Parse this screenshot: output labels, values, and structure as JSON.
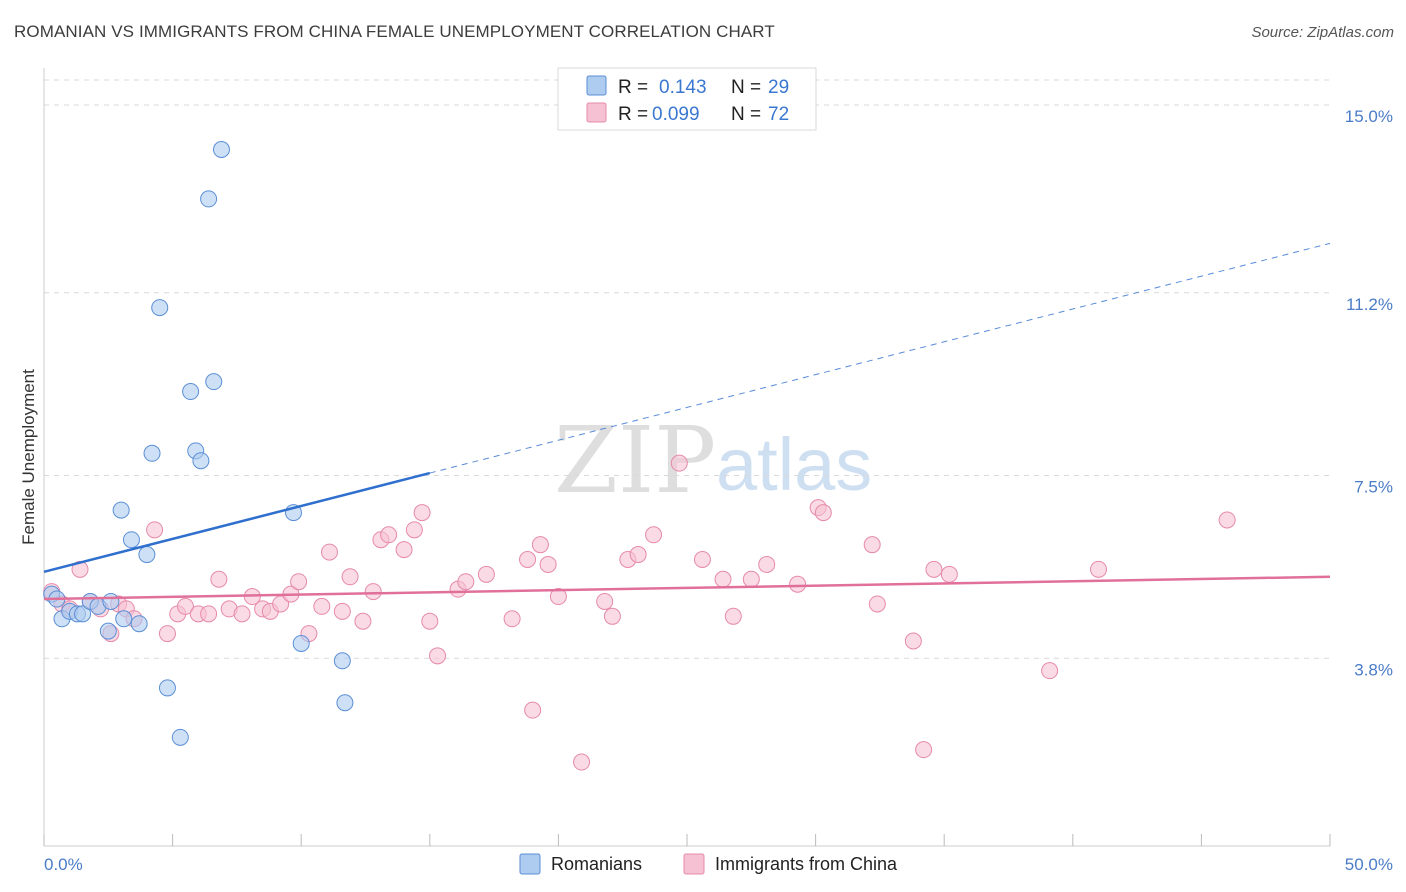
{
  "header": {
    "title": "ROMANIAN VS IMMIGRANTS FROM CHINA FEMALE UNEMPLOYMENT CORRELATION CHART",
    "source": "Source: ZipAtlas.com"
  },
  "watermark": {
    "zip": "ZIP",
    "atlas": "atlas"
  },
  "colors": {
    "romanians_fill": "#aecbf0",
    "romanians_stroke": "#5b8fd6",
    "romanians_line": "#2f6fce",
    "china_fill": "#f6c1d2",
    "china_stroke": "#e68aab",
    "china_line": "#e0709a",
    "tick_text": "#4a7cc7",
    "grid": "#d9d9d9"
  },
  "legend": {
    "rows": [
      {
        "r_label": "R =",
        "r_value": "0.143",
        "n_label": "N =",
        "n_value": "29"
      },
      {
        "r_label": "R =",
        "r_value": "0.099",
        "n_label": "N =",
        "n_value": "72"
      }
    ]
  },
  "bottom_legend": [
    {
      "label": "Romanians"
    },
    {
      "label": "Immigrants from China"
    }
  ],
  "chart_data": {
    "type": "scatter",
    "title": "ROMANIAN VS IMMIGRANTS FROM CHINA FEMALE UNEMPLOYMENT CORRELATION CHART",
    "xlabel": "",
    "ylabel": "Female Unemployment",
    "xlim": [
      0,
      50
    ],
    "ylim": [
      0,
      15.75
    ],
    "x_tick_labels": [
      "0.0%",
      "50.0%"
    ],
    "y_ticks": [
      3.8,
      7.5,
      11.2,
      15.0
    ],
    "y_tick_labels": [
      "3.8%",
      "7.5%",
      "11.2%",
      "15.0%"
    ],
    "grid": true,
    "series": [
      {
        "name": "Romanians",
        "r": 0.143,
        "n": 29,
        "trend": {
          "x0": 0,
          "y0": 5.55,
          "x1": 15,
          "y1": 7.55,
          "dashed_to_x": 50,
          "dashed_to_y": 12.2
        },
        "points": [
          [
            0.3,
            5.1
          ],
          [
            0.5,
            5.0
          ],
          [
            0.7,
            4.6
          ],
          [
            1.0,
            4.75
          ],
          [
            1.3,
            4.7
          ],
          [
            1.5,
            4.7
          ],
          [
            1.8,
            4.95
          ],
          [
            2.1,
            4.85
          ],
          [
            2.5,
            4.35
          ],
          [
            2.6,
            4.95
          ],
          [
            3.0,
            6.8
          ],
          [
            3.1,
            4.6
          ],
          [
            3.4,
            6.2
          ],
          [
            3.7,
            4.5
          ],
          [
            4.0,
            5.9
          ],
          [
            4.2,
            7.95
          ],
          [
            4.5,
            10.9
          ],
          [
            4.8,
            3.2
          ],
          [
            5.3,
            2.2
          ],
          [
            5.7,
            9.2
          ],
          [
            5.9,
            8.0
          ],
          [
            6.1,
            7.8
          ],
          [
            6.4,
            13.1
          ],
          [
            6.6,
            9.4
          ],
          [
            6.9,
            14.1
          ],
          [
            9.7,
            6.75
          ],
          [
            10.0,
            4.1
          ],
          [
            11.6,
            3.75
          ],
          [
            11.7,
            2.9
          ]
        ]
      },
      {
        "name": "Immigrants from China",
        "r": 0.099,
        "n": 72,
        "trend": {
          "x0": 0,
          "y0": 5.0,
          "x1": 50,
          "y1": 5.45
        },
        "points": [
          [
            0.3,
            5.15
          ],
          [
            0.7,
            4.9
          ],
          [
            1.0,
            4.8
          ],
          [
            1.4,
            5.6
          ],
          [
            1.8,
            4.95
          ],
          [
            2.2,
            4.8
          ],
          [
            2.6,
            4.3
          ],
          [
            2.9,
            4.9
          ],
          [
            3.2,
            4.8
          ],
          [
            3.5,
            4.6
          ],
          [
            4.3,
            6.4
          ],
          [
            4.8,
            4.3
          ],
          [
            5.2,
            4.7
          ],
          [
            5.5,
            4.85
          ],
          [
            6.0,
            4.7
          ],
          [
            6.4,
            4.7
          ],
          [
            6.8,
            5.4
          ],
          [
            7.2,
            4.8
          ],
          [
            7.7,
            4.7
          ],
          [
            8.1,
            5.05
          ],
          [
            8.5,
            4.8
          ],
          [
            8.8,
            4.75
          ],
          [
            9.2,
            4.9
          ],
          [
            9.6,
            5.1
          ],
          [
            9.9,
            5.35
          ],
          [
            10.3,
            4.3
          ],
          [
            10.8,
            4.85
          ],
          [
            11.1,
            5.95
          ],
          [
            11.6,
            4.75
          ],
          [
            11.9,
            5.45
          ],
          [
            12.4,
            4.55
          ],
          [
            12.8,
            5.15
          ],
          [
            13.1,
            6.2
          ],
          [
            13.4,
            6.3
          ],
          [
            14.0,
            6.0
          ],
          [
            14.4,
            6.4
          ],
          [
            14.7,
            6.75
          ],
          [
            15.0,
            4.55
          ],
          [
            15.3,
            3.85
          ],
          [
            16.1,
            5.2
          ],
          [
            16.4,
            5.35
          ],
          [
            17.2,
            5.5
          ],
          [
            18.2,
            4.6
          ],
          [
            18.8,
            5.8
          ],
          [
            19.0,
            2.75
          ],
          [
            19.3,
            6.1
          ],
          [
            19.6,
            5.7
          ],
          [
            20.0,
            5.05
          ],
          [
            20.9,
            1.7
          ],
          [
            21.8,
            4.95
          ],
          [
            22.1,
            4.65
          ],
          [
            22.7,
            5.8
          ],
          [
            23.1,
            5.9
          ],
          [
            23.7,
            6.3
          ],
          [
            24.7,
            7.75
          ],
          [
            25.6,
            5.8
          ],
          [
            26.4,
            5.4
          ],
          [
            26.8,
            4.65
          ],
          [
            27.5,
            5.4
          ],
          [
            28.1,
            5.7
          ],
          [
            29.3,
            5.3
          ],
          [
            30.1,
            6.85
          ],
          [
            30.3,
            6.75
          ],
          [
            32.2,
            6.1
          ],
          [
            32.4,
            4.9
          ],
          [
            33.8,
            4.15
          ],
          [
            34.2,
            1.95
          ],
          [
            34.6,
            5.6
          ],
          [
            35.2,
            5.5
          ],
          [
            39.1,
            3.55
          ],
          [
            41.0,
            5.6
          ],
          [
            46.0,
            6.6
          ]
        ]
      }
    ]
  }
}
